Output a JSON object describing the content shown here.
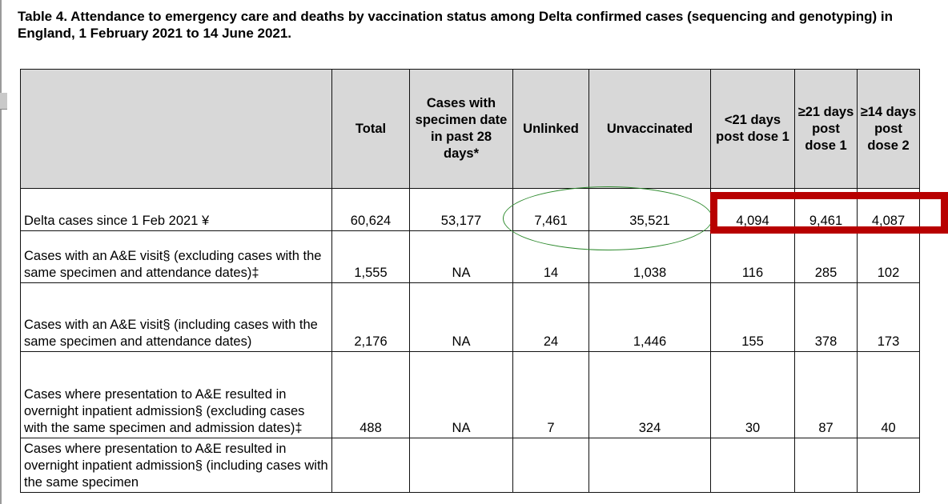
{
  "caption": "Table 4. Attendance to emergency care and deaths by vaccination status among Delta confirmed cases (sequencing and genotyping) in England, 1 February 2021 to 14 June 2021.",
  "table": {
    "headers": [
      "",
      "Total",
      "Cases with specimen date in past 28 days*",
      "Unlinked",
      "Unvaccinated",
      "<21 days post dose 1",
      "≥21 days post dose 1",
      "≥14 days post dose 2"
    ],
    "rows": [
      {
        "label": "Delta cases since 1 Feb 2021 ¥",
        "values": [
          "60,624",
          "53,177",
          "7,461",
          "35,521",
          "4,094",
          "9,461",
          "4,087"
        ]
      },
      {
        "label": "Cases with an A&E visit§ (excluding cases with the same specimen and attendance dates)‡",
        "values": [
          "1,555",
          "NA",
          "14",
          "1,038",
          "116",
          "285",
          "102"
        ]
      },
      {
        "label": "Cases with an A&E visit§ (including cases with the same specimen and attendance dates)",
        "values": [
          "2,176",
          "NA",
          "24",
          "1,446",
          "155",
          "378",
          "173"
        ]
      },
      {
        "label": "Cases where presentation to A&E resulted in overnight inpatient admission§ (excluding cases with the same specimen and admission dates)‡",
        "values": [
          "488",
          "NA",
          "7",
          "324",
          "30",
          "87",
          "40"
        ]
      },
      {
        "label": "Cases where presentation to A&E resulted in overnight inpatient admission§ (including cases with the same specimen",
        "values": [
          "",
          "",
          "",
          "",
          "",
          "",
          ""
        ]
      }
    ]
  },
  "annotations": {
    "ellipse_color": "#2d8a2d",
    "box_color": "#b80000"
  }
}
